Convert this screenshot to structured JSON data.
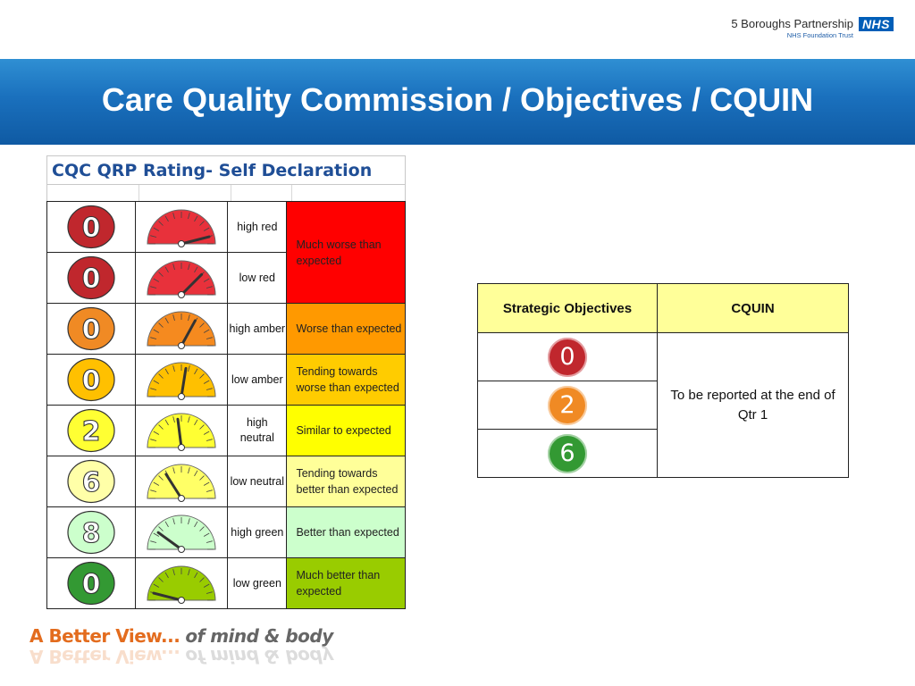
{
  "org": {
    "name": "5 Boroughs Partnership",
    "subtitle": "NHS Foundation Trust",
    "nhs_logo": "NHS"
  },
  "title": "Care Quality Commission / Objectives / CQUIN",
  "qrp": {
    "title": "CQC QRP Rating- Self Declaration",
    "rows": [
      {
        "count": "0",
        "label": "high red",
        "needle_level": 0.92,
        "dial_color": "#e8313b",
        "circle_fill": "#c0272d",
        "circle_text": "#ffffff",
        "description": "Much worse than expected",
        "desc_bg": "#ff0000",
        "desc_span": 2
      },
      {
        "count": "0",
        "label": "low red",
        "needle_level": 0.75,
        "dial_color": "#e8313b",
        "circle_fill": "#c0272d",
        "circle_text": "#ffffff"
      },
      {
        "count": "0",
        "label": "high amber",
        "needle_level": 0.66,
        "dial_color": "#f58a1f",
        "circle_fill": "#f08a24",
        "circle_text": "#ffffff",
        "description": "Worse than expected",
        "desc_bg": "#ff9900",
        "desc_span": 1
      },
      {
        "count": "0",
        "label": "low amber",
        "needle_level": 0.55,
        "dial_color": "#ffc000",
        "circle_fill": "#ffc000",
        "circle_text": "#ffffff",
        "description": "Tending towards worse than expected",
        "desc_bg": "#ffcc00",
        "desc_span": 1
      },
      {
        "count": "2",
        "label": "high neutral",
        "needle_level": 0.46,
        "dial_color": "#ffff33",
        "circle_fill": "#ffff33",
        "circle_text": "#ffffff",
        "description": "Similar to expected",
        "desc_bg": "#ffff00",
        "desc_span": 1
      },
      {
        "count": "6",
        "label": "low neutral",
        "needle_level": 0.32,
        "dial_color": "#ffff66",
        "circle_fill": "#ffffa8",
        "circle_text": "#ffffff",
        "description": "Tending towards better than expected",
        "desc_bg": "#ffff99",
        "desc_span": 1
      },
      {
        "count": "8",
        "label": "high green",
        "needle_level": 0.2,
        "dial_color": "#ccffcc",
        "circle_fill": "#ccffcc",
        "circle_text": "#ffffff",
        "description": "Better than expected",
        "desc_bg": "#ccffcc",
        "desc_span": 1
      },
      {
        "count": "0",
        "label": "low green",
        "needle_level": 0.08,
        "dial_color": "#99cc00",
        "circle_fill": "#339933",
        "circle_text": "#ffffff",
        "description": "Much better than expected",
        "desc_bg": "#99cc00",
        "desc_span": 1
      }
    ]
  },
  "strategic": {
    "header_objectives": "Strategic Objectives",
    "header_cquin": "CQUIN",
    "header_bg": "#ffff99",
    "objectives": [
      {
        "value": "0",
        "color": "#c0272d"
      },
      {
        "value": "2",
        "color": "#f08a24"
      },
      {
        "value": "6",
        "color": "#339933"
      }
    ],
    "cquin_text": "To be reported at the end of Qtr 1"
  },
  "footer": {
    "tagline_a": "A Better View...",
    "tagline_b": "of mind & body"
  }
}
